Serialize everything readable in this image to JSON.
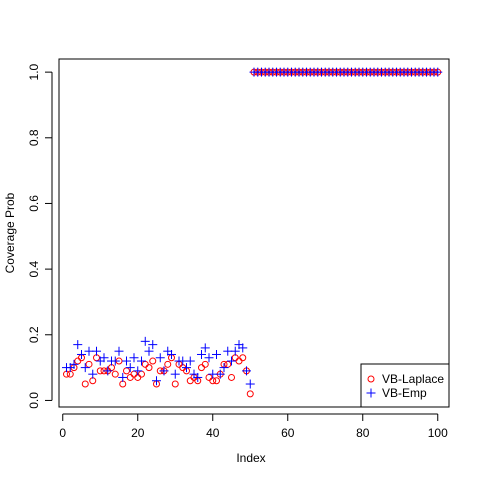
{
  "chart_data": {
    "type": "scatter",
    "title": "",
    "xlabel": "Index",
    "ylabel": "Coverage Prob",
    "xlim": [
      -1,
      103
    ],
    "ylim": [
      -0.02,
      1.04
    ],
    "xticks": [
      0,
      20,
      40,
      60,
      80,
      100
    ],
    "yticks": [
      0.0,
      0.2,
      0.4,
      0.6,
      0.8,
      1.0
    ],
    "xtick_labels": [
      "0",
      "20",
      "40",
      "60",
      "80",
      "100"
    ],
    "ytick_labels": [
      "0.0",
      "0.2",
      "0.4",
      "0.6",
      "0.8",
      "1.0"
    ],
    "grid": false,
    "legend_position": "bottom-right",
    "series": [
      {
        "name": "VB-Laplace",
        "marker": "open-circle",
        "color": "#ff0000",
        "x": [
          1,
          2,
          3,
          4,
          5,
          6,
          7,
          8,
          9,
          10,
          11,
          12,
          13,
          14,
          15,
          16,
          17,
          18,
          19,
          20,
          21,
          22,
          23,
          24,
          25,
          26,
          27,
          28,
          29,
          30,
          31,
          32,
          33,
          34,
          35,
          36,
          37,
          38,
          39,
          40,
          41,
          42,
          43,
          44,
          45,
          46,
          47,
          48,
          49,
          50,
          51,
          52,
          53,
          54,
          55,
          56,
          57,
          58,
          59,
          60,
          61,
          62,
          63,
          64,
          65,
          66,
          67,
          68,
          69,
          70,
          71,
          72,
          73,
          74,
          75,
          76,
          77,
          78,
          79,
          80,
          81,
          82,
          83,
          84,
          85,
          86,
          87,
          88,
          89,
          90,
          91,
          92,
          93,
          94,
          95,
          96,
          97,
          98,
          99,
          100
        ],
        "y": [
          0.08,
          0.08,
          0.1,
          0.12,
          0.13,
          0.05,
          0.11,
          0.06,
          0.13,
          0.09,
          0.09,
          0.09,
          0.1,
          0.08,
          0.12,
          0.05,
          0.09,
          0.07,
          0.08,
          0.07,
          0.08,
          0.11,
          0.1,
          0.12,
          0.05,
          0.09,
          0.09,
          0.11,
          0.13,
          0.05,
          0.11,
          0.1,
          0.09,
          0.06,
          0.07,
          0.06,
          0.1,
          0.11,
          0.07,
          0.06,
          0.06,
          0.08,
          0.11,
          0.11,
          0.07,
          0.13,
          0.12,
          0.13,
          0.09,
          0.02,
          1,
          1,
          1,
          1,
          1,
          1,
          1,
          1,
          1,
          1,
          1,
          1,
          1,
          1,
          1,
          1,
          1,
          1,
          1,
          1,
          1,
          1,
          1,
          1,
          1,
          1,
          1,
          1,
          1,
          1,
          1,
          1,
          1,
          1,
          1,
          1,
          1,
          1,
          1,
          1,
          1,
          1,
          1,
          1,
          1,
          1,
          1,
          1,
          1,
          1
        ]
      },
      {
        "name": "VB-Emp",
        "marker": "plus",
        "color": "#0000ff",
        "x": [
          1,
          2,
          3,
          4,
          5,
          6,
          7,
          8,
          9,
          10,
          11,
          12,
          13,
          14,
          15,
          16,
          17,
          18,
          19,
          20,
          21,
          22,
          23,
          24,
          25,
          26,
          27,
          28,
          29,
          30,
          31,
          32,
          33,
          34,
          35,
          36,
          37,
          38,
          39,
          40,
          41,
          42,
          43,
          44,
          45,
          46,
          47,
          48,
          49,
          50,
          51,
          52,
          53,
          54,
          55,
          56,
          57,
          58,
          59,
          60,
          61,
          62,
          63,
          64,
          65,
          66,
          67,
          68,
          69,
          70,
          71,
          72,
          73,
          74,
          75,
          76,
          77,
          78,
          79,
          80,
          81,
          82,
          83,
          84,
          85,
          86,
          87,
          88,
          89,
          90,
          91,
          92,
          93,
          94,
          95,
          96,
          97,
          98,
          99,
          100
        ],
        "y": [
          0.1,
          0.1,
          0.11,
          0.17,
          0.14,
          0.1,
          0.15,
          0.08,
          0.15,
          0.12,
          0.13,
          0.09,
          0.12,
          0.12,
          0.15,
          0.07,
          0.12,
          0.1,
          0.13,
          0.09,
          0.12,
          0.18,
          0.15,
          0.17,
          0.06,
          0.13,
          0.09,
          0.15,
          0.14,
          0.08,
          0.12,
          0.12,
          0.1,
          0.12,
          0.08,
          0.07,
          0.14,
          0.16,
          0.13,
          0.08,
          0.14,
          0.08,
          0.1,
          0.15,
          0.12,
          0.15,
          0.17,
          0.16,
          0.09,
          0.05,
          1,
          1,
          1,
          1,
          1,
          1,
          1,
          1,
          1,
          1,
          1,
          1,
          1,
          1,
          1,
          1,
          1,
          1,
          1,
          1,
          1,
          1,
          1,
          1,
          1,
          1,
          1,
          1,
          1,
          1,
          1,
          1,
          1,
          1,
          1,
          1,
          1,
          1,
          1,
          1,
          1,
          1,
          1,
          1,
          1,
          1,
          1,
          1,
          1,
          1
        ]
      }
    ]
  }
}
